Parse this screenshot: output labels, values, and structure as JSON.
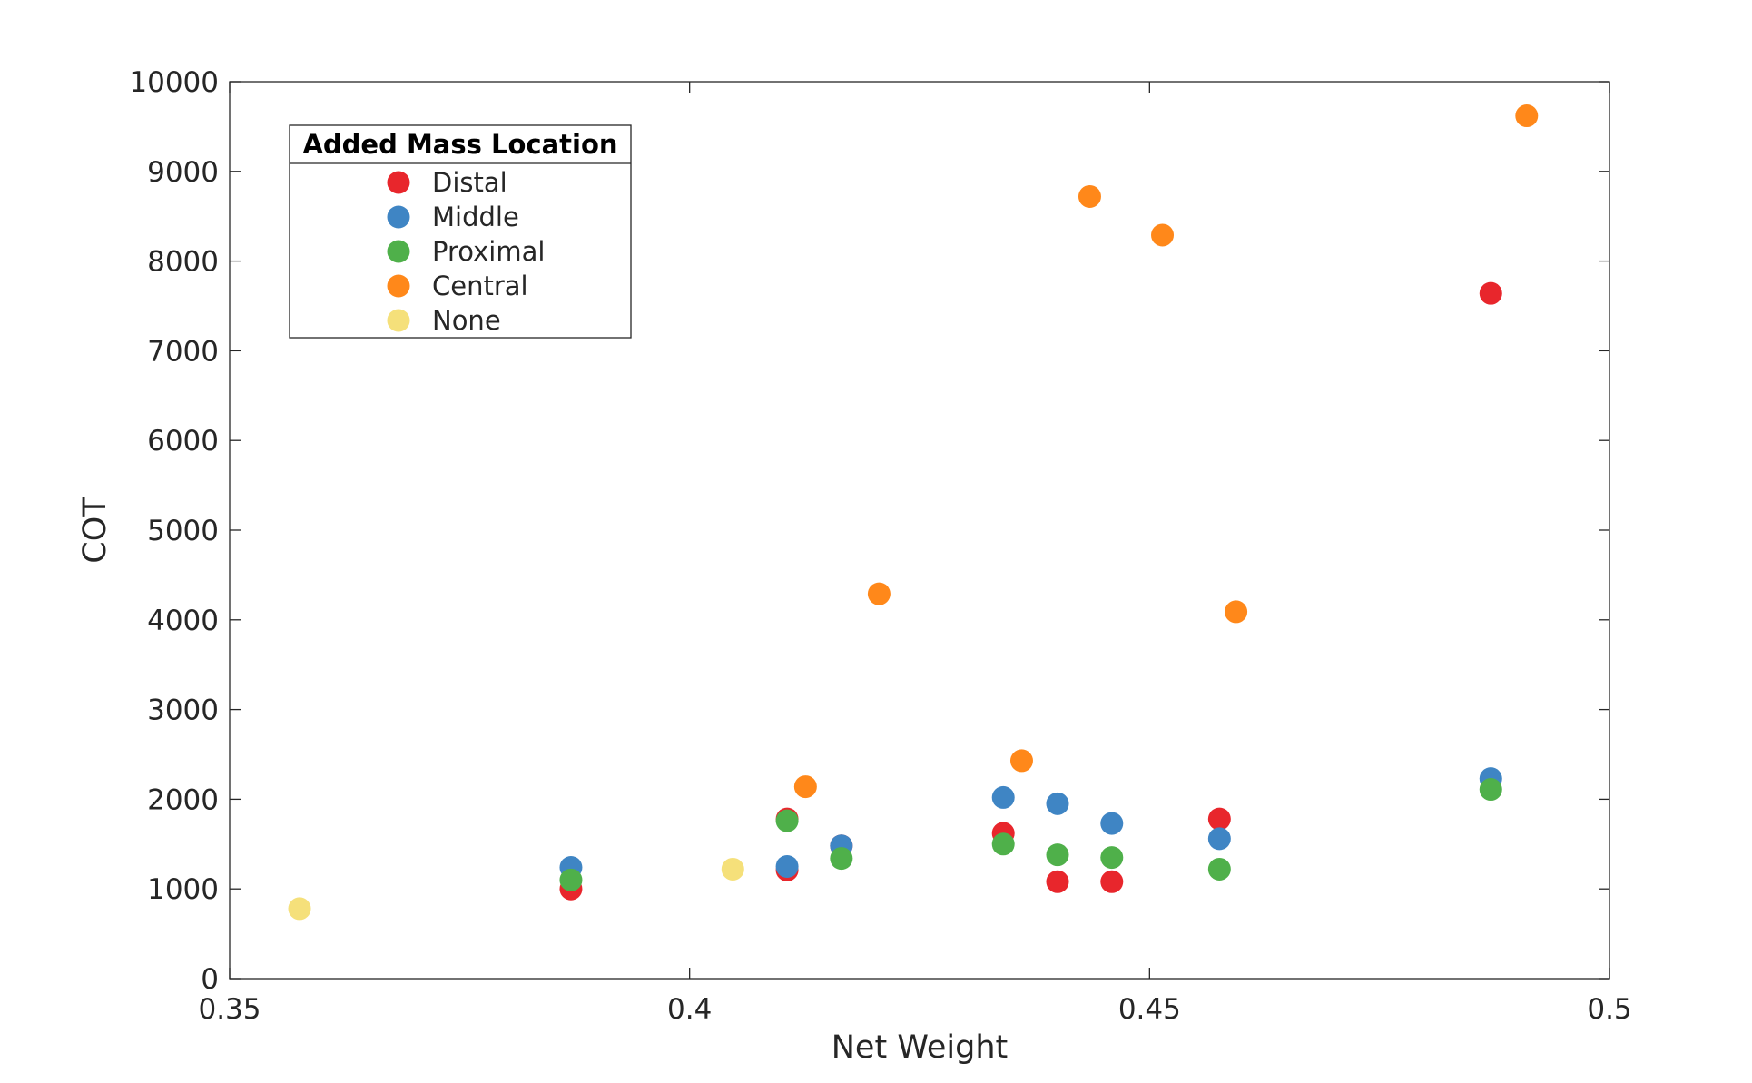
{
  "chart_data": {
    "type": "scatter",
    "title": "",
    "xlabel": "Net Weight",
    "ylabel": "COT",
    "xlim": [
      0.35,
      0.5
    ],
    "ylim": [
      0,
      10000
    ],
    "x_ticks": [
      0.35,
      0.4,
      0.45,
      0.5
    ],
    "x_tick_labels": [
      "0.35",
      "0.4",
      "0.45",
      "0.5"
    ],
    "y_ticks": [
      0,
      1000,
      2000,
      3000,
      4000,
      5000,
      6000,
      7000,
      8000,
      9000,
      10000
    ],
    "y_tick_labels": [
      "0",
      "1000",
      "2000",
      "3000",
      "4000",
      "5000",
      "6000",
      "7000",
      "8000",
      "9000",
      "10000"
    ],
    "grid": false,
    "legend": {
      "title": "Added Mass Location",
      "placement": "top-left"
    },
    "series": [
      {
        "name": "Distal",
        "color": "#e8262c",
        "points": [
          {
            "x": 0.3871,
            "y": 1000
          },
          {
            "x": 0.4106,
            "y": 1210
          },
          {
            "x": 0.4106,
            "y": 1780
          },
          {
            "x": 0.4165,
            "y": 1480
          },
          {
            "x": 0.4341,
            "y": 1620
          },
          {
            "x": 0.44,
            "y": 1080
          },
          {
            "x": 0.4459,
            "y": 1080
          },
          {
            "x": 0.4576,
            "y": 1780
          },
          {
            "x": 0.4871,
            "y": 7640
          }
        ]
      },
      {
        "name": "Middle",
        "color": "#3f85c4",
        "points": [
          {
            "x": 0.3871,
            "y": 1240
          },
          {
            "x": 0.4106,
            "y": 1250
          },
          {
            "x": 0.4165,
            "y": 1480
          },
          {
            "x": 0.4341,
            "y": 2020
          },
          {
            "x": 0.44,
            "y": 1950
          },
          {
            "x": 0.4459,
            "y": 1730
          },
          {
            "x": 0.4576,
            "y": 1560
          },
          {
            "x": 0.4871,
            "y": 2230
          }
        ]
      },
      {
        "name": "Proximal",
        "color": "#4fb04a",
        "points": [
          {
            "x": 0.3871,
            "y": 1100
          },
          {
            "x": 0.4106,
            "y": 1760
          },
          {
            "x": 0.4165,
            "y": 1340
          },
          {
            "x": 0.4341,
            "y": 1500
          },
          {
            "x": 0.44,
            "y": 1380
          },
          {
            "x": 0.4459,
            "y": 1350
          },
          {
            "x": 0.4576,
            "y": 1220
          },
          {
            "x": 0.4871,
            "y": 2110
          }
        ]
      },
      {
        "name": "Central",
        "color": "#ff881a",
        "points": [
          {
            "x": 0.4126,
            "y": 2140
          },
          {
            "x": 0.4206,
            "y": 4290
          },
          {
            "x": 0.4361,
            "y": 2430
          },
          {
            "x": 0.4435,
            "y": 8720
          },
          {
            "x": 0.4514,
            "y": 8290
          },
          {
            "x": 0.4594,
            "y": 4090
          },
          {
            "x": 0.491,
            "y": 9620
          }
        ]
      },
      {
        "name": "None",
        "color": "#f5e07a",
        "points": [
          {
            "x": 0.3576,
            "y": 780
          },
          {
            "x": 0.4047,
            "y": 1220
          }
        ]
      }
    ]
  }
}
